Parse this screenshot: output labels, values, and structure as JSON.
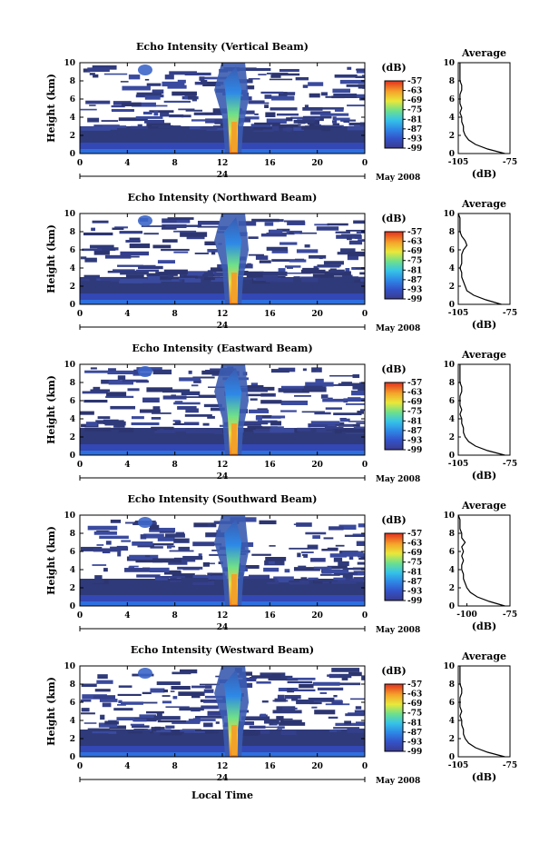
{
  "chart_data": {
    "type": "heatmap",
    "panels": [
      {
        "title": "Echo Intensity (Vertical Beam)",
        "avg_profile": [
          -78,
          -88,
          -95,
          -99,
          -101,
          -102,
          -102,
          -103,
          -103,
          -104,
          -103,
          -104,
          -104,
          -104,
          -103,
          -103,
          -104,
          -104,
          -104,
          -104,
          -104
        ]
      },
      {
        "title": "Echo Intensity (Northward Beam)",
        "avg_profile": [
          -80,
          -89,
          -96,
          -100,
          -101,
          -102,
          -103,
          -103,
          -104,
          -103,
          -103,
          -103,
          -102,
          -100,
          -101,
          -103,
          -104,
          -104,
          -104,
          -104,
          -105
        ]
      },
      {
        "title": "Echo Intensity (Eastward Beam)",
        "avg_profile": [
          -78,
          -88,
          -95,
          -99,
          -101,
          -102,
          -102,
          -103,
          -103,
          -104,
          -103,
          -104,
          -104,
          -104,
          -103,
          -103,
          -104,
          -104,
          -104,
          -104,
          -104
        ]
      },
      {
        "title": "Echo Intensity (Southward Beam)",
        "avg_profile": [
          -78,
          -87,
          -94,
          -98,
          -100,
          -101,
          -102,
          -102,
          -103,
          -103,
          -102,
          -103,
          -102,
          -103,
          -101,
          -103,
          -103,
          -104,
          -104,
          -104,
          -105
        ]
      },
      {
        "title": "Echo Intensity (Westward Beam)",
        "avg_profile": [
          -78,
          -88,
          -95,
          -99,
          -101,
          -102,
          -102,
          -103,
          -103,
          -104,
          -103,
          -104,
          -104,
          -104,
          -103,
          -103,
          -104,
          -104,
          -104,
          -104,
          -104
        ]
      }
    ],
    "x_ticks": [
      "0",
      "4",
      "8",
      "12",
      "16",
      "20",
      "0"
    ],
    "xlim": [
      0,
      24
    ],
    "y_ticks": [
      "0",
      "2",
      "4",
      "6",
      "8",
      "10"
    ],
    "ylim": [
      0,
      10
    ],
    "ylabel": "Height (km)",
    "xlabel": "Local Time",
    "date_tick_label": "24",
    "date_month": "May 2008",
    "colorbar": {
      "label": "(dB)",
      "ticks": [
        "-57",
        "-63",
        "-69",
        "-75",
        "-81",
        "-87",
        "-93",
        "-99"
      ],
      "range": [
        -99,
        -57
      ]
    },
    "avg_title": "Average",
    "avg_xlabel": "(dB)",
    "avg_x_ticks": [
      "-105",
      "-75"
    ],
    "avg_x_ticks_panel4": [
      "-100",
      "-75"
    ],
    "avg_xlim": [
      -105,
      -75
    ]
  }
}
